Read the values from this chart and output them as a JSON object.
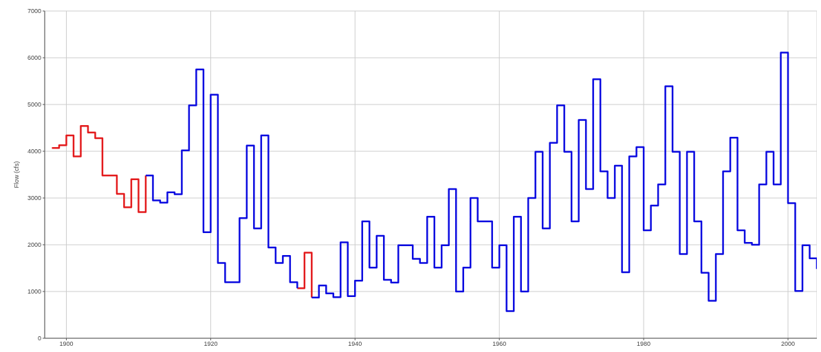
{
  "chart_data": {
    "type": "step",
    "ylabel": "Flow (cfs)",
    "x": [
      1898,
      1899,
      1900,
      1901,
      1902,
      1903,
      1904,
      1905,
      1906,
      1907,
      1908,
      1909,
      1910,
      1911,
      1912,
      1913,
      1914,
      1915,
      1916,
      1917,
      1918,
      1919,
      1920,
      1921,
      1922,
      1923,
      1924,
      1925,
      1926,
      1927,
      1928,
      1929,
      1930,
      1931,
      1932,
      1933,
      1934,
      1935,
      1936,
      1937,
      1938,
      1939,
      1940,
      1941,
      1942,
      1943,
      1944,
      1945,
      1946,
      1947,
      1948,
      1949,
      1950,
      1951,
      1952,
      1953,
      1954,
      1955,
      1956,
      1957,
      1958,
      1959,
      1960,
      1961,
      1962,
      1963,
      1964,
      1965,
      1966,
      1967,
      1968,
      1969,
      1970,
      1971,
      1972,
      1973,
      1974,
      1975,
      1976,
      1977,
      1978,
      1979,
      1980,
      1981,
      1982,
      1983,
      1984,
      1985,
      1986,
      1987,
      1988,
      1989,
      1990,
      1991,
      1992,
      1993,
      1994,
      1995,
      1996,
      1997,
      1998,
      1999,
      2000,
      2001,
      2002,
      2003,
      2004
    ],
    "series": [
      {
        "color": "#e31a1c",
        "values": [
          4070,
          4130,
          4340,
          3890,
          4540,
          4400,
          4280,
          3480,
          3480,
          3090,
          2800,
          3400,
          2700,
          3480,
          null,
          null,
          null,
          null,
          null,
          null,
          null,
          null,
          null,
          null,
          null,
          null,
          null,
          null,
          null,
          null,
          null,
          null,
          null,
          null,
          1070,
          1830,
          870,
          null,
          null,
          null,
          null,
          null,
          null,
          null,
          null,
          null,
          null,
          null,
          null,
          null,
          null,
          null,
          null,
          null,
          null,
          null,
          null,
          null,
          null,
          null,
          null,
          null,
          null,
          null,
          null,
          null,
          null,
          null,
          null,
          null,
          null,
          null,
          null,
          null,
          null,
          null,
          null,
          null,
          null,
          null,
          null,
          null,
          null,
          null,
          null,
          null,
          null,
          null,
          null,
          null,
          null,
          null,
          null,
          null,
          null,
          null,
          null,
          null,
          null,
          null,
          null,
          null,
          null,
          null,
          null,
          null,
          null
        ]
      },
      {
        "color": "#0a0ae0",
        "values": [
          null,
          null,
          null,
          null,
          null,
          null,
          null,
          null,
          null,
          null,
          null,
          null,
          null,
          3480,
          2950,
          2900,
          3120,
          3080,
          4020,
          4980,
          5750,
          2270,
          5210,
          1610,
          1200,
          1200,
          2570,
          4120,
          2350,
          4340,
          1940,
          1610,
          1760,
          1200,
          1070,
          null,
          870,
          1130,
          960,
          880,
          2050,
          900,
          1230,
          2500,
          1510,
          2190,
          1250,
          1190,
          1990,
          1990,
          1700,
          1610,
          2600,
          1510,
          1990,
          3190,
          1000,
          1510,
          3000,
          2500,
          2500,
          1510,
          1990,
          580,
          2600,
          1000,
          3000,
          3990,
          2350,
          4180,
          4980,
          3990,
          2500,
          4670,
          3190,
          5540,
          3570,
          3000,
          3690,
          1410,
          3890,
          4090,
          2310,
          2840,
          3290,
          5390,
          3990,
          1800,
          3990,
          2500,
          1400,
          800,
          1800,
          3570,
          4290,
          2310,
          2040,
          2000,
          3290,
          3990,
          3290,
          6110,
          2890,
          1010,
          1990,
          1710,
          1480
        ]
      }
    ],
    "xlim": [
      1897,
      2004
    ],
    "xticks": [
      1900,
      1920,
      1940,
      1960,
      1980,
      2000
    ],
    "ylim": [
      0,
      7000
    ],
    "yticks": [
      0,
      1000,
      2000,
      3000,
      4000,
      5000,
      6000,
      7000
    ],
    "grid": true,
    "legend": false,
    "line_style": "solid"
  }
}
